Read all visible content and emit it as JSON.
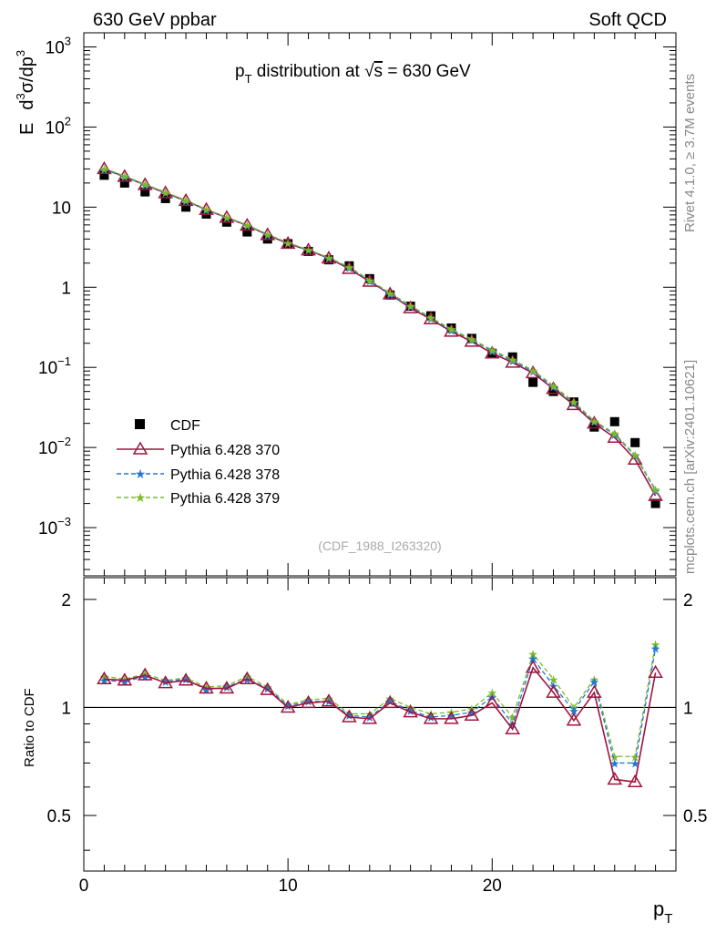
{
  "header": {
    "left": "630 GeV ppbar",
    "right": "Soft QCD"
  },
  "side_labels": {
    "rivet": "Rivet 4.1.0, ≥ 3.7M events",
    "mcplots": "mcplots.cern.ch [arXiv:2401.10621]"
  },
  "colors": {
    "cdf": "#000000",
    "p370": "#a0153e",
    "p378": "#1f78d6",
    "p379": "#7cbb24"
  },
  "chart_data": {
    "type": "line",
    "title": "p_T distribution at √s = 630 GeV",
    "title_parts": {
      "pre": "p",
      "sub": "T",
      "mid": " distribution at ",
      "sqrt": "√",
      "s": "s",
      "post": " = 630 GeV"
    },
    "watermark": "(CDF_1988_I263320)",
    "xlabel": "p_T",
    "xlabel_parts": {
      "main": "p",
      "sub": "T"
    },
    "ylabel": "E d³σ/dp³",
    "ylabel_parts": {
      "e": "E",
      "d1": "d",
      "sup1": "3",
      "mid": "σ/dp",
      "sup2": "3"
    },
    "ratio_ylabel": "Ratio to CDF",
    "xlim": [
      0,
      29
    ],
    "ylim": [
      0.00025,
      1500
    ],
    "ratio_ylim": [
      0.35,
      2.3
    ],
    "x_ticks": [
      0,
      10,
      20
    ],
    "y_ticks": [
      {
        "value": 0.001,
        "base": "10",
        "exp": "−3"
      },
      {
        "value": 0.01,
        "base": "10",
        "exp": "−2"
      },
      {
        "value": 0.1,
        "base": "10",
        "exp": "−1"
      },
      {
        "value": 1,
        "base": "1",
        "exp": ""
      },
      {
        "value": 10,
        "base": "10",
        "exp": ""
      },
      {
        "value": 100,
        "base": "10",
        "exp": "2"
      },
      {
        "value": 1000,
        "base": "10",
        "exp": "3"
      }
    ],
    "ratio_ticks": [
      {
        "value": 0.5,
        "label": "0.5"
      },
      {
        "value": 1,
        "label": "1"
      },
      {
        "value": 2,
        "label": "2"
      }
    ],
    "x": [
      1,
      2,
      3,
      4,
      5,
      6,
      7,
      8,
      9,
      10,
      11,
      12,
      13,
      14,
      15,
      16,
      17,
      18,
      19,
      20,
      21,
      22,
      23,
      24,
      25,
      26,
      27,
      28
    ],
    "legend": [
      "CDF",
      "Pythia 6.428 370",
      "Pythia 6.428 378",
      "Pythia 6.428 379"
    ],
    "series": [
      {
        "name": "CDF",
        "key": "cdf",
        "values": [
          25,
          20,
          15.5,
          12.8,
          10,
          8.2,
          6.5,
          4.9,
          4.0,
          3.5,
          2.8,
          2.2,
          1.85,
          1.28,
          0.8,
          0.58,
          0.44,
          0.31,
          0.23,
          0.15,
          0.135,
          0.065,
          0.05,
          0.037,
          0.018,
          0.021,
          0.0115,
          0.002
        ]
      },
      {
        "name": "Pythia 6.428 370",
        "key": "p370",
        "values": [
          30,
          24,
          19,
          15,
          12,
          9.3,
          7.4,
          5.9,
          4.5,
          3.5,
          2.9,
          2.3,
          1.7,
          1.18,
          0.82,
          0.55,
          0.4,
          0.28,
          0.21,
          0.15,
          0.115,
          0.085,
          0.054,
          0.034,
          0.02,
          0.0133,
          0.0071,
          0.0025
        ]
      },
      {
        "name": "Pythia 6.428 378",
        "key": "p378",
        "values": [
          29.5,
          23.8,
          18.9,
          15.1,
          12.0,
          9.2,
          7.4,
          5.9,
          4.5,
          3.55,
          2.9,
          2.3,
          1.75,
          1.2,
          0.82,
          0.57,
          0.41,
          0.29,
          0.22,
          0.16,
          0.12,
          0.089,
          0.057,
          0.036,
          0.021,
          0.0145,
          0.0079,
          0.0029
        ]
      },
      {
        "name": "Pythia 6.428 379",
        "key": "p379",
        "values": [
          30.5,
          24.5,
          19.3,
          15.4,
          12.2,
          9.4,
          7.5,
          6.0,
          4.6,
          3.6,
          2.95,
          2.35,
          1.79,
          1.23,
          0.85,
          0.59,
          0.42,
          0.3,
          0.225,
          0.165,
          0.125,
          0.092,
          0.059,
          0.037,
          0.0215,
          0.015,
          0.0081,
          0.003
        ]
      }
    ],
    "ratios": [
      {
        "name": "Pythia 6.428 370",
        "key": "p370",
        "values": [
          1.2,
          1.19,
          1.23,
          1.17,
          1.19,
          1.13,
          1.13,
          1.2,
          1.12,
          1.0,
          1.03,
          1.04,
          0.94,
          0.93,
          1.03,
          0.97,
          0.93,
          0.93,
          0.95,
          1.03,
          0.87,
          1.29,
          1.1,
          0.92,
          1.1,
          0.63,
          0.62,
          1.25
        ]
      },
      {
        "name": "Pythia 6.428 378",
        "key": "p378",
        "values": [
          1.19,
          1.18,
          1.22,
          1.18,
          1.2,
          1.12,
          1.14,
          1.2,
          1.13,
          1.01,
          1.04,
          1.04,
          0.95,
          0.94,
          1.04,
          0.98,
          0.94,
          0.95,
          0.97,
          1.07,
          0.9,
          1.37,
          1.15,
          0.98,
          1.18,
          0.7,
          0.7,
          1.46
        ]
      },
      {
        "name": "Pythia 6.428 379",
        "key": "p379",
        "values": [
          1.22,
          1.2,
          1.24,
          1.19,
          1.21,
          1.14,
          1.15,
          1.22,
          1.14,
          1.02,
          1.05,
          1.06,
          0.96,
          0.96,
          1.06,
          1.0,
          0.96,
          0.97,
          0.99,
          1.1,
          0.94,
          1.41,
          1.2,
          1.0,
          1.2,
          0.73,
          0.73,
          1.5
        ]
      }
    ]
  }
}
